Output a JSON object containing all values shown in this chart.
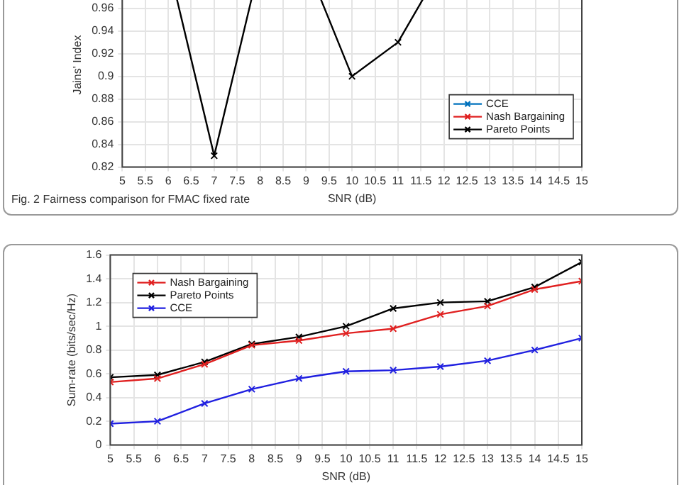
{
  "chart_data": [
    {
      "type": "line",
      "xlabel": "SNR (dB)",
      "ylabel": "Jains' Index",
      "x": [
        5,
        6,
        7,
        8,
        9,
        10,
        11,
        12,
        13,
        14,
        15
      ],
      "series": [
        {
          "name": "CCE",
          "color": "#0072bd",
          "marker": "cross",
          "values": [
            null,
            null,
            null,
            null,
            null,
            null,
            null,
            null,
            null,
            null,
            null
          ]
        },
        {
          "name": "Nash Bargaining",
          "color": "#e02020",
          "marker": "cross",
          "values": [
            null,
            null,
            null,
            null,
            null,
            null,
            null,
            null,
            null,
            null,
            null
          ]
        },
        {
          "name": "Pareto Points",
          "color": "#000000",
          "marker": "cross",
          "values": [
            1,
            1,
            0.83,
            1,
            1,
            0.9,
            0.93,
            1,
            1,
            1,
            1
          ]
        }
      ],
      "xlim": [
        5,
        15
      ],
      "xticks": [
        5,
        5.5,
        6,
        6.5,
        7,
        7.5,
        8,
        8.5,
        9,
        9.5,
        10,
        10.5,
        11,
        11.5,
        12,
        12.5,
        13,
        13.5,
        14,
        14.5,
        15
      ],
      "ylim": [
        0.82,
        1
      ],
      "yticks": [
        0.82,
        0.84,
        0.86,
        0.88,
        0.9,
        0.92,
        0.94,
        0.96
      ],
      "grid": true,
      "legend": "bottom right",
      "annotations": [
        "Fig. 2 Fairness comparison for FMAC fixed rate"
      ]
    },
    {
      "type": "line",
      "xlabel": "SNR (dB)",
      "ylabel": "Sum-rate (bits/sec/Hz)",
      "x": [
        5,
        6,
        7,
        8,
        9,
        10,
        11,
        12,
        13,
        14,
        15
      ],
      "series": [
        {
          "name": "Nash Bargaining",
          "color": "#e02020",
          "marker": "cross",
          "values": [
            0.53,
            0.56,
            0.68,
            0.84,
            0.88,
            0.94,
            0.98,
            1.1,
            1.17,
            1.31,
            1.38
          ]
        },
        {
          "name": "Pareto Points",
          "color": "#000000",
          "marker": "cross",
          "values": [
            0.57,
            0.59,
            0.7,
            0.85,
            0.91,
            1.0,
            1.15,
            1.2,
            1.21,
            1.33,
            1.54
          ]
        },
        {
          "name": "CCE",
          "color": "#2020e0",
          "marker": "cross",
          "values": [
            0.18,
            0.2,
            0.35,
            0.47,
            0.56,
            0.62,
            0.63,
            0.66,
            0.71,
            0.8,
            0.9
          ]
        }
      ],
      "xlim": [
        5,
        15
      ],
      "xticks": [
        5,
        5.5,
        6,
        6.5,
        7,
        7.5,
        8,
        8.5,
        9,
        9.5,
        10,
        10.5,
        11,
        11.5,
        12,
        12.5,
        13,
        13.5,
        14,
        14.5,
        15
      ],
      "ylim": [
        0,
        1.6
      ],
      "yticks": [
        0,
        0.2,
        0.4,
        0.6,
        0.8,
        1,
        1.2,
        1.4,
        1.6
      ],
      "grid": true,
      "legend": "top left"
    }
  ]
}
